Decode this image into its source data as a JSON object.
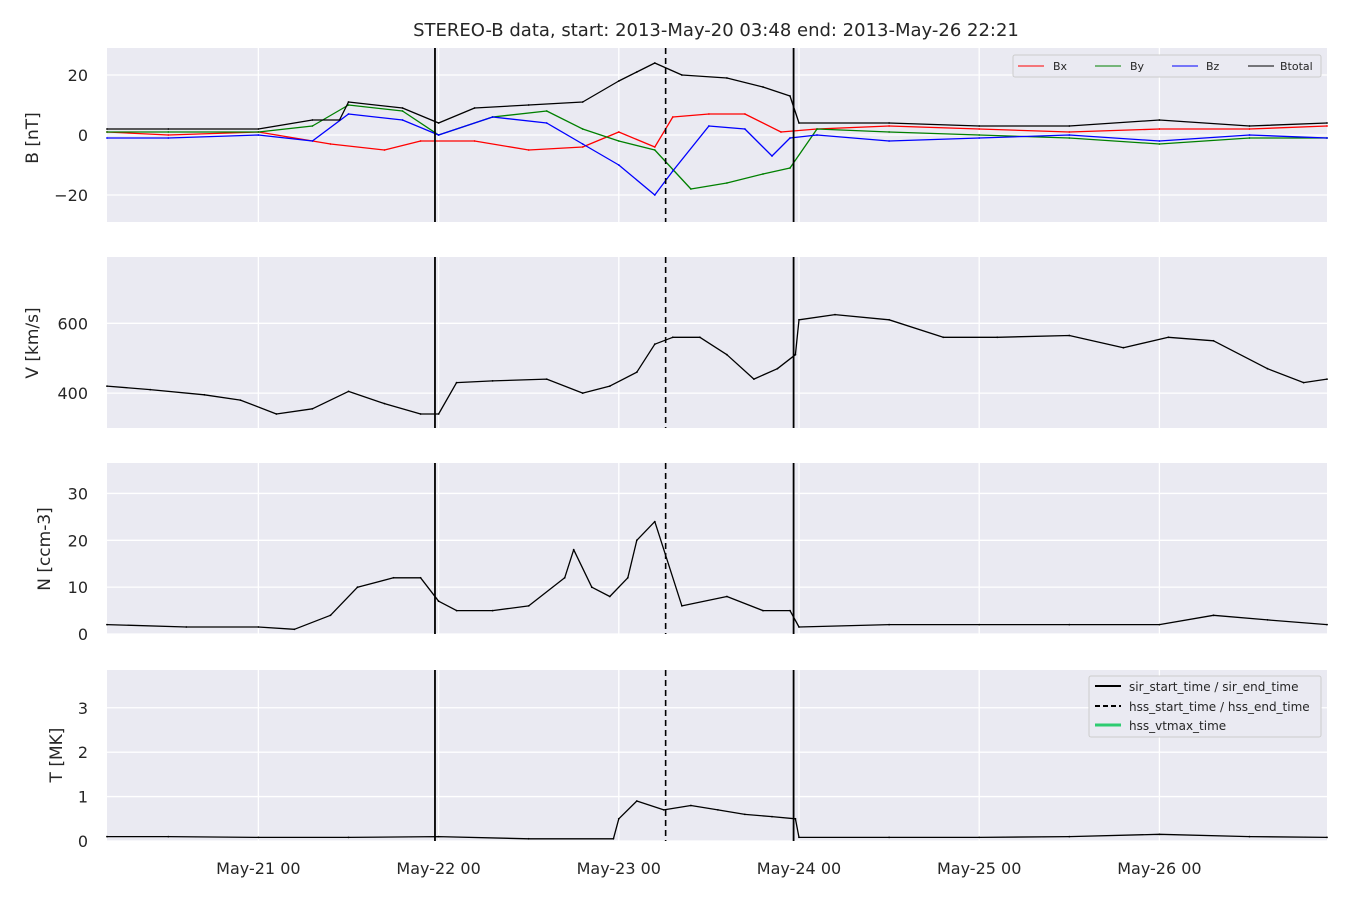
{
  "title": "STEREO-B data, start: 2013-May-20 03:48  end: 2013-May-26 22:21",
  "x_ticks": [
    "May-21 00",
    "May-22 00",
    "May-23 00",
    "May-24 00",
    "May-25 00",
    "May-26 00"
  ],
  "colors": {
    "panel_bg": "#eaeaf2",
    "grid": "#ffffff",
    "bx": "#ff0000",
    "by": "#008000",
    "bz": "#0000ff",
    "btotal": "#000000",
    "hss_vtmax": "#2ecc71"
  },
  "chart_data": [
    {
      "type": "line",
      "ylabel": "B [nT]",
      "ylim": [
        -29,
        29
      ],
      "yticks": [
        -20,
        0,
        20
      ],
      "ytick_labels": [
        "−20",
        "0",
        "20"
      ],
      "legend": {
        "placement": "top-right",
        "entries": [
          "Bx",
          "By",
          "Bz",
          "Btotal"
        ]
      },
      "series": [
        {
          "name": "Bx",
          "x": [
            20.16,
            20.5,
            21.0,
            21.4,
            21.7,
            21.9,
            22.2,
            22.5,
            22.8,
            23.0,
            23.2,
            23.3,
            23.5,
            23.7,
            23.9,
            24.1,
            24.5,
            25.0,
            25.5,
            26.0,
            26.5,
            26.93
          ],
          "values": [
            1,
            0,
            1,
            -3,
            -5,
            -2,
            -2,
            -5,
            -4,
            1,
            -4,
            6,
            7,
            7,
            1,
            2,
            3,
            2,
            1,
            2,
            2,
            3
          ]
        },
        {
          "name": "By",
          "x": [
            20.16,
            20.5,
            21.0,
            21.3,
            21.5,
            21.8,
            22.0,
            22.3,
            22.6,
            22.8,
            23.0,
            23.2,
            23.4,
            23.6,
            23.8,
            23.95,
            24.1,
            24.5,
            25.0,
            25.5,
            26.0,
            26.5,
            26.93
          ],
          "values": [
            1,
            1,
            1,
            3,
            10,
            8,
            0,
            6,
            8,
            2,
            -2,
            -5,
            -18,
            -16,
            -13,
            -11,
            2,
            1,
            0,
            -1,
            -3,
            -1,
            -1
          ]
        },
        {
          "name": "Bz",
          "x": [
            20.16,
            20.5,
            21.0,
            21.3,
            21.5,
            21.8,
            22.0,
            22.3,
            22.6,
            22.8,
            23.0,
            23.2,
            23.3,
            23.5,
            23.7,
            23.85,
            23.95,
            24.1,
            24.5,
            25.0,
            25.5,
            26.0,
            26.5,
            26.93
          ],
          "values": [
            -1,
            -1,
            0,
            -2,
            7,
            5,
            0,
            6,
            4,
            -3,
            -10,
            -20,
            -12,
            3,
            2,
            -7,
            -1,
            0,
            -2,
            -1,
            0,
            -2,
            0,
            -1
          ]
        },
        {
          "name": "Btotal",
          "x": [
            20.16,
            20.5,
            21.0,
            21.3,
            21.45,
            21.5,
            21.8,
            22.0,
            22.2,
            22.5,
            22.8,
            23.0,
            23.1,
            23.2,
            23.35,
            23.6,
            23.8,
            23.95,
            24.0,
            24.5,
            25.0,
            25.5,
            26.0,
            26.5,
            26.93
          ],
          "values": [
            2,
            2,
            2,
            5,
            5,
            11,
            9,
            4,
            9,
            10,
            11,
            18,
            21,
            24,
            20,
            19,
            16,
            13,
            4,
            4,
            3,
            3,
            5,
            3,
            4
          ]
        }
      ]
    },
    {
      "type": "line",
      "ylabel": "V [km/s]",
      "ylim": [
        300,
        790
      ],
      "yticks": [
        400,
        600
      ],
      "ytick_labels": [
        "400",
        "600"
      ],
      "series": [
        {
          "name": "V",
          "x": [
            20.16,
            20.4,
            20.7,
            20.9,
            21.1,
            21.3,
            21.5,
            21.7,
            21.9,
            22.0,
            22.1,
            22.3,
            22.6,
            22.8,
            22.95,
            23.1,
            23.2,
            23.3,
            23.45,
            23.6,
            23.75,
            23.88,
            23.98,
            24.0,
            24.2,
            24.5,
            24.8,
            25.1,
            25.5,
            25.8,
            26.05,
            26.3,
            26.6,
            26.8,
            26.93
          ],
          "values": [
            420,
            410,
            395,
            380,
            340,
            355,
            405,
            370,
            340,
            340,
            430,
            435,
            440,
            400,
            420,
            460,
            540,
            560,
            560,
            510,
            440,
            470,
            510,
            610,
            625,
            610,
            560,
            560,
            565,
            530,
            560,
            550,
            470,
            430,
            440
          ]
        }
      ]
    },
    {
      "type": "line",
      "ylabel": "N [ccm-3]",
      "ylim": [
        0,
        36.5
      ],
      "yticks": [
        0,
        10,
        20,
        30
      ],
      "ytick_labels": [
        "0",
        "10",
        "20",
        "30"
      ],
      "series": [
        {
          "name": "N",
          "x": [
            20.16,
            20.6,
            21.0,
            21.2,
            21.4,
            21.55,
            21.75,
            21.9,
            22.0,
            22.1,
            22.3,
            22.5,
            22.7,
            22.75,
            22.85,
            22.95,
            23.05,
            23.1,
            23.2,
            23.35,
            23.6,
            23.8,
            23.95,
            24.0,
            24.5,
            25.0,
            25.5,
            26.0,
            26.3,
            26.6,
            26.93
          ],
          "values": [
            2,
            1.5,
            1.5,
            1,
            4,
            10,
            12,
            12,
            7,
            5,
            5,
            6,
            12,
            18,
            10,
            8,
            12,
            20,
            24,
            6,
            8,
            5,
            5,
            1.5,
            2,
            2,
            2,
            2,
            4,
            3,
            2
          ]
        }
      ]
    },
    {
      "type": "line",
      "ylabel": "T [MK]",
      "ylim": [
        0,
        3.85
      ],
      "yticks": [
        0,
        1,
        2,
        3
      ],
      "ytick_labels": [
        "0",
        "1",
        "2",
        "3"
      ],
      "legend": {
        "placement": "top-right",
        "entries": [
          "sir_start_time / sir_end_time",
          "hss_start_time / hss_end_time",
          "hss_vtmax_time"
        ]
      },
      "series": [
        {
          "name": "T",
          "x": [
            20.16,
            20.5,
            21.0,
            21.5,
            22.0,
            22.5,
            22.97,
            23.0,
            23.1,
            23.25,
            23.4,
            23.55,
            23.7,
            23.85,
            23.98,
            24.0,
            24.5,
            25.0,
            25.5,
            26.0,
            26.5,
            26.93
          ],
          "values": [
            0.1,
            0.1,
            0.08,
            0.08,
            0.1,
            0.05,
            0.05,
            0.5,
            0.9,
            0.7,
            0.8,
            0.7,
            0.6,
            0.55,
            0.5,
            0.08,
            0.08,
            0.08,
            0.1,
            0.15,
            0.1,
            0.08
          ]
        }
      ]
    }
  ],
  "markers": {
    "sir_start_time": 21.98,
    "sir_end_time": 23.97,
    "hss_start_time": 23.26
  },
  "x_range": [
    20.16,
    26.93
  ]
}
